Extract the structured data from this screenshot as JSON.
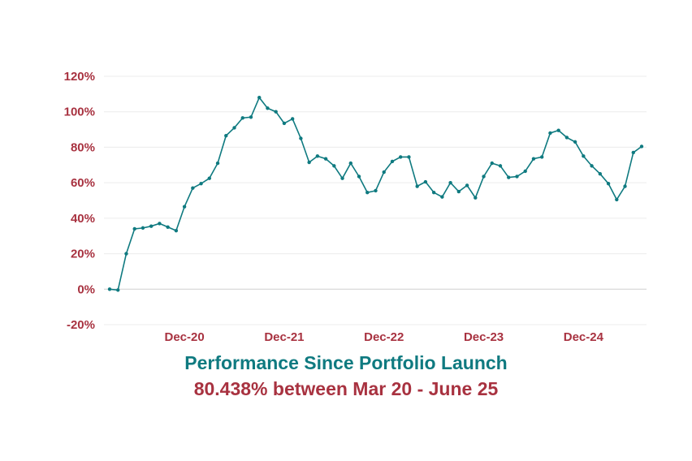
{
  "chart_data": {
    "type": "line",
    "title": "Performance Since Portfolio Launch",
    "subtitle": "80.438% between Mar 20 - June 25",
    "ylim": [
      -20,
      120
    ],
    "yticks": [
      -20,
      0,
      20,
      40,
      60,
      80,
      100,
      120
    ],
    "ytick_labels": [
      "-20%",
      "0%",
      "20%",
      "40%",
      "60%",
      "80%",
      "100%",
      "120%"
    ],
    "xlim": [
      0,
      64
    ],
    "xtick_positions": [
      9,
      21,
      33,
      45,
      57
    ],
    "xtick_labels": [
      "Dec-20",
      "Dec-21",
      "Dec-22",
      "Dec-23",
      "Dec-24"
    ],
    "grid": true,
    "colors": {
      "series": "#0f7a80",
      "ticks": "#a83240",
      "title": "#0f7a80",
      "subtitle": "#a83240"
    },
    "series": [
      {
        "values": [
          0,
          -0.5,
          20,
          34,
          34.5,
          35.5,
          37,
          35,
          33,
          46.5,
          57,
          59.5,
          62.5,
          71,
          86.5,
          91,
          96.5,
          97,
          108,
          102,
          100,
          93.5,
          96,
          85,
          71.5,
          75,
          73.5,
          69.5,
          62.5,
          71,
          63.5,
          54.5,
          55.5,
          66,
          72,
          74.5,
          74.5,
          58,
          60.5,
          54.5,
          52,
          60,
          55,
          58.5,
          51.5,
          63.5,
          71,
          69.5,
          63,
          63.5,
          66.5,
          73.5,
          74.5,
          88,
          89.5,
          85.5,
          83,
          75,
          69.5,
          65,
          59.5,
          50.5,
          58,
          77,
          80.438
        ]
      }
    ]
  }
}
